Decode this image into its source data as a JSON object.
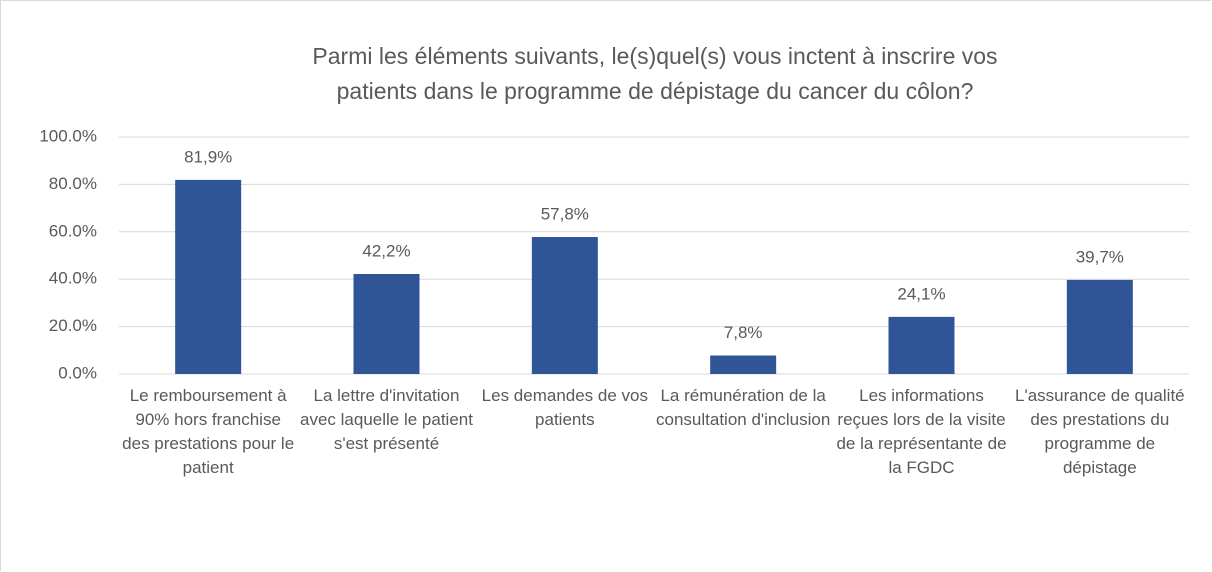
{
  "chart_data": {
    "type": "bar",
    "title": "Parmi les éléments suivants, le(s)quel(s) vous inctent à inscrire vos patients dans le programme de dépistage du cancer du côlon?",
    "categories": [
      "Le remboursement à 90% hors franchise des prestations pour le patient",
      "La lettre d'invitation avec laquelle le patient s'est présenté",
      "Les demandes de vos patients",
      "La rémunération de la consultation d'inclusion",
      "Les informations reçues lors de la visite de la représentante de la FGDC",
      "L'assurance de qualité des prestations du programme de dépistage"
    ],
    "values": [
      81.9,
      42.2,
      57.8,
      7.8,
      24.1,
      39.7
    ],
    "value_labels": [
      "81,9%",
      "42,2%",
      "57,8%",
      "7,8%",
      "24,1%",
      "39,7%"
    ],
    "color": "#2f5597",
    "ylim": [
      0,
      100
    ],
    "yticks": [
      {
        "value": 0,
        "label": "0.0%"
      },
      {
        "value": 20,
        "label": "20.0%"
      },
      {
        "value": 40,
        "label": "40.0%"
      },
      {
        "value": 60,
        "label": "60.0%"
      },
      {
        "value": 80,
        "label": "80.0%"
      },
      {
        "value": 100,
        "label": "100.0%"
      }
    ],
    "grid": true
  }
}
